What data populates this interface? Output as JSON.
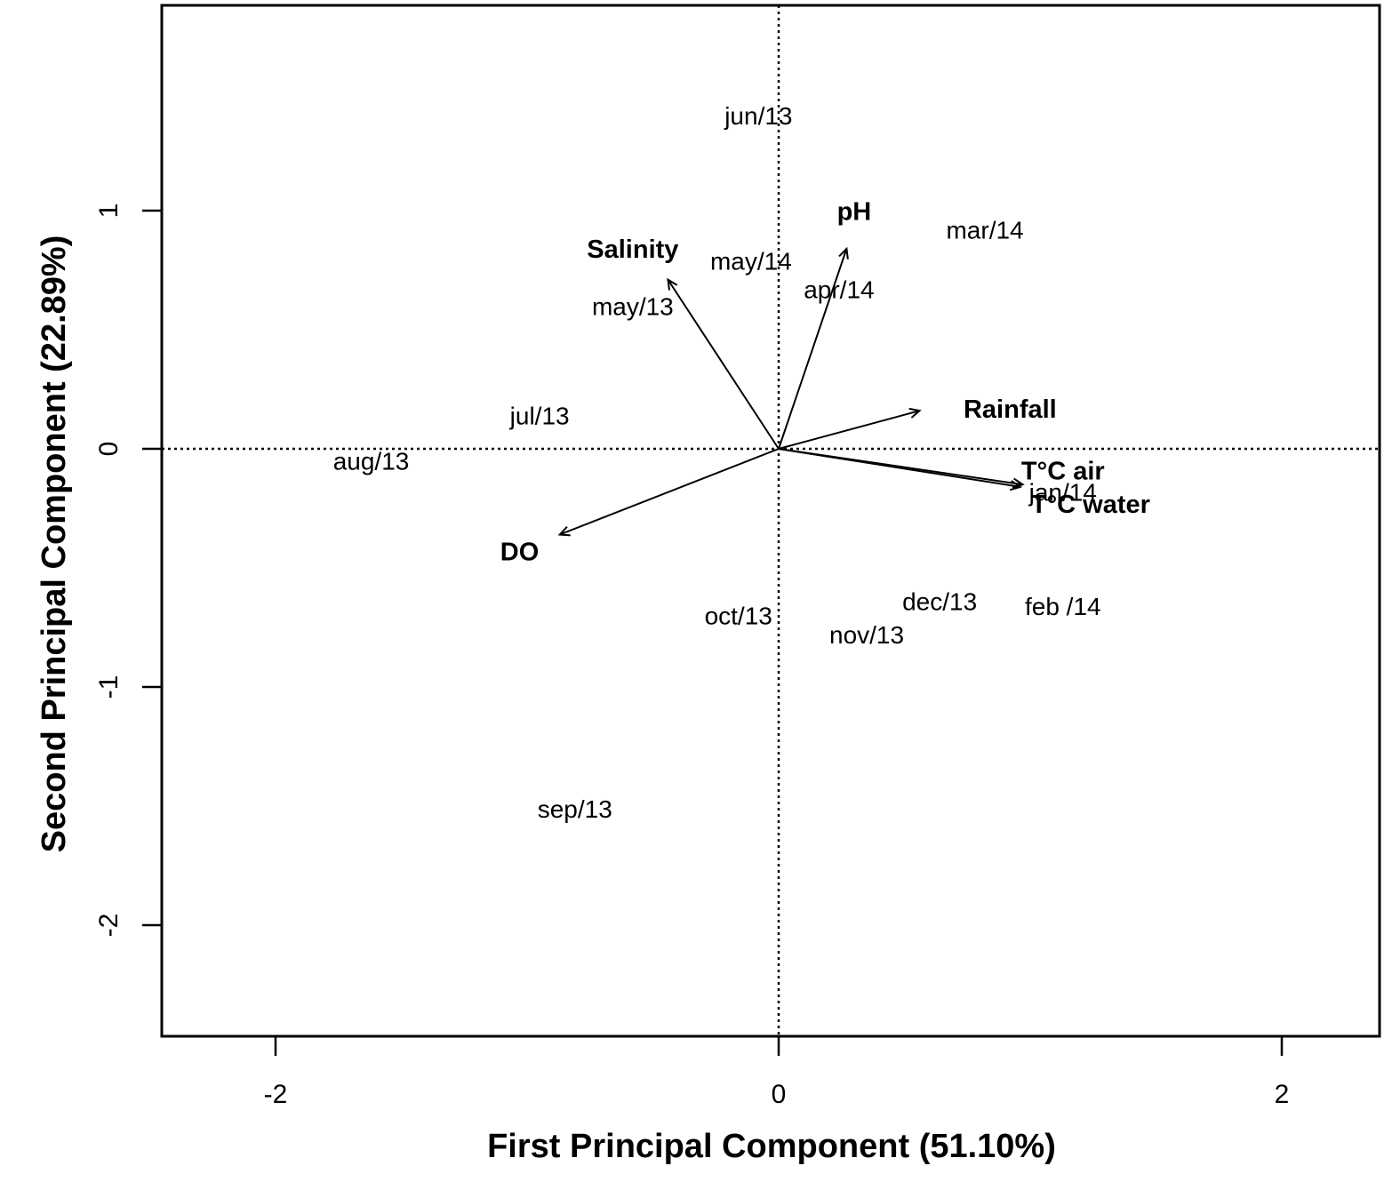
{
  "chart_data": {
    "type": "scatter",
    "subtype": "biplot",
    "xlabel": "First Principal Component (51.10%)",
    "ylabel": "Second Principal Component (22.89%)",
    "xlim": [
      -2.5,
      2.5
    ],
    "ylim": [
      -2.5,
      1.85
    ],
    "x_ticks": [
      -2,
      0,
      2
    ],
    "y_ticks": [
      -2,
      -1,
      0,
      1
    ],
    "reference_lines": {
      "x": 0,
      "y": 0,
      "style": "dotted"
    },
    "observations": [
      {
        "label": "jun/13",
        "x": -0.08,
        "y": 1.39
      },
      {
        "label": "mar/14",
        "x": 0.82,
        "y": 0.91
      },
      {
        "label": "may/14",
        "x": -0.11,
        "y": 0.78
      },
      {
        "label": "apr/14",
        "x": 0.24,
        "y": 0.66
      },
      {
        "label": "may/13",
        "x": -0.58,
        "y": 0.59
      },
      {
        "label": "jul/13",
        "x": -0.95,
        "y": 0.13
      },
      {
        "label": "aug/13",
        "x": -1.62,
        "y": -0.06
      },
      {
        "label": "jan/14",
        "x": 1.13,
        "y": -0.19
      },
      {
        "label": "dec/13",
        "x": 0.64,
        "y": -0.65
      },
      {
        "label": "feb /14",
        "x": 1.13,
        "y": -0.67
      },
      {
        "label": "oct/13",
        "x": -0.16,
        "y": -0.71
      },
      {
        "label": "nov/13",
        "x": 0.35,
        "y": -0.79
      },
      {
        "label": "sep/13",
        "x": -0.81,
        "y": -1.52
      }
    ],
    "variables": [
      {
        "label": "pH",
        "x": 0.27,
        "y": 0.84,
        "label_x": 0.3,
        "label_y": 0.99
      },
      {
        "label": "Salinity",
        "x": -0.44,
        "y": 0.71,
        "label_x": -0.58,
        "label_y": 0.83
      },
      {
        "label": "Rainfall",
        "x": 0.56,
        "y": 0.16,
        "label_x": 0.92,
        "label_y": 0.16
      },
      {
        "label": "T°C air",
        "x": 0.97,
        "y": -0.15,
        "label_x": 1.13,
        "label_y": -0.1
      },
      {
        "label": "T°C water",
        "x": 0.96,
        "y": -0.16,
        "label_x": 1.24,
        "label_y": -0.24
      },
      {
        "label": "DO",
        "x": -0.87,
        "y": -0.36,
        "label_x": -1.03,
        "label_y": -0.44
      }
    ]
  }
}
